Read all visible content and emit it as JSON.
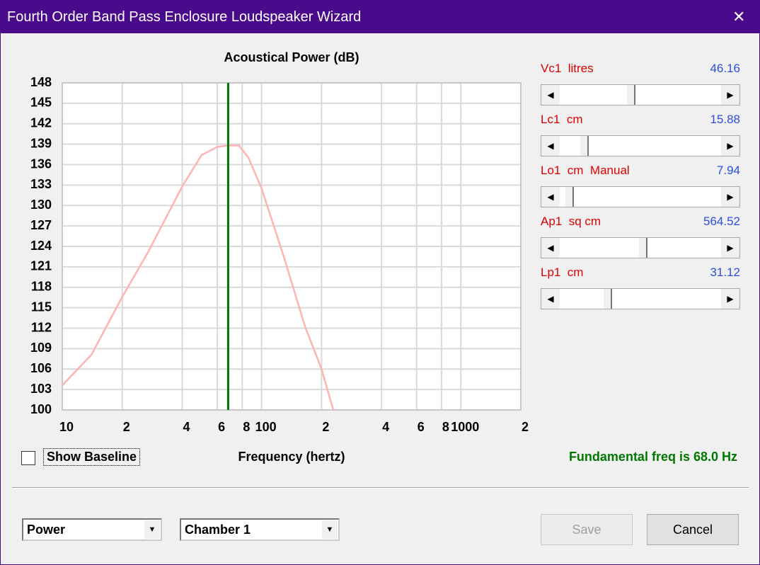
{
  "window": {
    "title": "Fourth Order Band Pass Enclosure Loudspeaker Wizard"
  },
  "chart_data": {
    "type": "line",
    "title": "Acoustical Power (dB)",
    "x_label": "Frequency (hertz)",
    "x": [
      10,
      14,
      20,
      27,
      40,
      50,
      60,
      68,
      77,
      86,
      100,
      129,
      165,
      200,
      229
    ],
    "values": [
      103.6,
      108.1,
      116.6,
      123.2,
      132.8,
      137.4,
      138.6,
      138.8,
      138.8,
      137.0,
      132.5,
      122.6,
      112.3,
      106.0,
      100.0
    ],
    "color": "#ffb3b3",
    "xscale": "log",
    "grid": true,
    "xlim": [
      10,
      2000
    ],
    "xticks": [
      10,
      {
        "value": 20,
        "label": "2"
      },
      {
        "value": 40,
        "label": "4"
      },
      {
        "value": 60,
        "label": "6"
      },
      {
        "value": 80,
        "label": "8"
      },
      100,
      {
        "value": 200,
        "label": "2"
      },
      {
        "value": 400,
        "label": "4"
      },
      {
        "value": 600,
        "label": "6"
      },
      {
        "value": 800,
        "label": "8"
      },
      1000,
      {
        "value": 2000,
        "label": "2"
      }
    ],
    "ylim": [
      100,
      148
    ],
    "yticks": [
      100,
      103,
      106,
      109,
      112,
      115,
      118,
      121,
      124,
      127,
      130,
      133,
      136,
      139,
      142,
      145,
      148
    ],
    "marker": 68,
    "marker_color": "#007800",
    "annotation": "Fundamental freq is 68.0 Hz"
  },
  "controls": {
    "sliders": [
      {
        "label": "Vc1  litres",
        "value": "46.16"
      },
      {
        "label": "Lc1  cm",
        "value": "15.88"
      },
      {
        "label": "Lo1  cm  Manual",
        "value": "7.94"
      },
      {
        "label": "Ap1  sq cm",
        "value": "564.52"
      },
      {
        "label": "Lp1  cm",
        "value": "31.12"
      }
    ],
    "show_baseline": "Show Baseline",
    "dropdowns": [
      "Power",
      "Chamber 1"
    ],
    "buttons": [
      "Save",
      "Cancel"
    ]
  }
}
